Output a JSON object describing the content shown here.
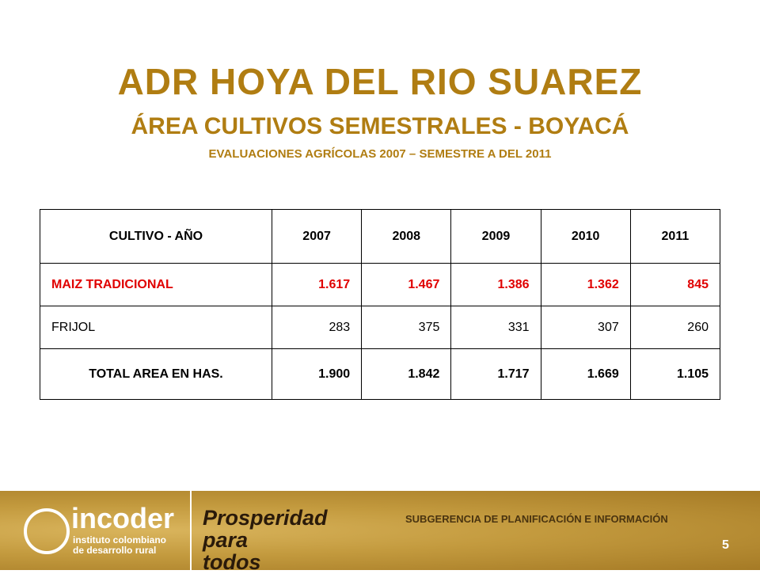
{
  "header": {
    "title": "ADR HOYA DEL RIO SUAREZ",
    "subtitle": "ÁREA CULTIVOS SEMESTRALES - BOYACÁ",
    "caption": "EVALUACIONES AGRÍCOLAS 2007 – SEMESTRE A DEL 2011"
  },
  "table": {
    "columns": [
      "CULTIVO  - AÑO",
      "2007",
      "2008",
      "2009",
      "2010",
      "2011"
    ],
    "rows": [
      [
        "MAIZ TRADICIONAL",
        "1.617",
        "1.467",
        "1.386",
        "1.362",
        "845"
      ],
      [
        "FRIJOL",
        "283",
        "375",
        "331",
        "307",
        "260"
      ],
      [
        "TOTAL AREA EN HAS.",
        "1.900",
        "1.842",
        "1.717",
        "1.669",
        "1.105"
      ]
    ]
  },
  "footer": {
    "logo": "incoder",
    "logo_subtitle": "instituto colombiano de desarrollo rural",
    "slogan": "Prosperidad para todos",
    "department": "SUBGERENCIA DE PLANIFICACIÓN E INFORMACIÓN",
    "page": "5"
  }
}
